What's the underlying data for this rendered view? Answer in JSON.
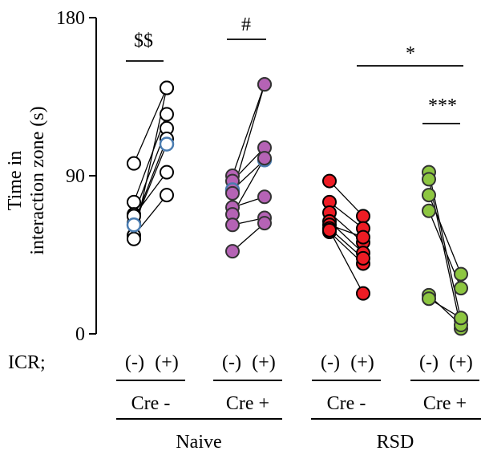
{
  "chart_data": {
    "type": "scatter",
    "ylabel_line1": "Time in",
    "ylabel_line2": "interaction zone (s)",
    "ylim": [
      0,
      180
    ],
    "yticks": [
      "0",
      "90",
      "180"
    ],
    "icr_label": "ICR;",
    "icr_minus": "(-)",
    "icr_plus": "(+)",
    "groups": [
      {
        "cre": "Cre -",
        "condition": "Naive",
        "color": "#ffffff",
        "stroke": "#000000",
        "pairs": [
          [
            97,
            140
          ],
          [
            75,
            125
          ],
          [
            68,
            117
          ],
          [
            63,
            111
          ],
          [
            67,
            92
          ],
          [
            56,
            79
          ],
          [
            54,
            140
          ],
          [
            62,
            108
          ]
        ],
        "highlight": [
          [
            62,
            108
          ]
        ],
        "significance": "$$"
      },
      {
        "cre": "Cre +",
        "condition": "Naive",
        "color": "#b563b5",
        "stroke": "#333333",
        "pairs": [
          [
            90,
            142
          ],
          [
            87,
            106
          ],
          [
            82,
            99
          ],
          [
            72,
            78
          ],
          [
            68,
            100
          ],
          [
            62,
            66
          ],
          [
            47,
            63
          ],
          [
            80,
            142
          ]
        ],
        "highlight": [
          [
            82,
            99
          ]
        ],
        "significance": "#"
      },
      {
        "cre": "Cre -",
        "condition": "RSD",
        "color": "#ee1c24",
        "stroke": "#000000",
        "pairs": [
          [
            87,
            67
          ],
          [
            75,
            60
          ],
          [
            69,
            52
          ],
          [
            64,
            46
          ],
          [
            58,
            40
          ],
          [
            62,
            55
          ],
          [
            60,
            43
          ],
          [
            59,
            23
          ]
        ],
        "highlight": [],
        "significance": ""
      },
      {
        "cre": "Cre +",
        "condition": "RSD",
        "color": "#8dc641",
        "stroke": "#333333",
        "pairs": [
          [
            92,
            8
          ],
          [
            88,
            3
          ],
          [
            79,
            34
          ],
          [
            70,
            26
          ],
          [
            22,
            5
          ],
          [
            20,
            9
          ]
        ],
        "highlight": [],
        "significance": "***"
      }
    ],
    "between_group_significance": "*",
    "conditions": [
      "Naive",
      "RSD"
    ]
  }
}
